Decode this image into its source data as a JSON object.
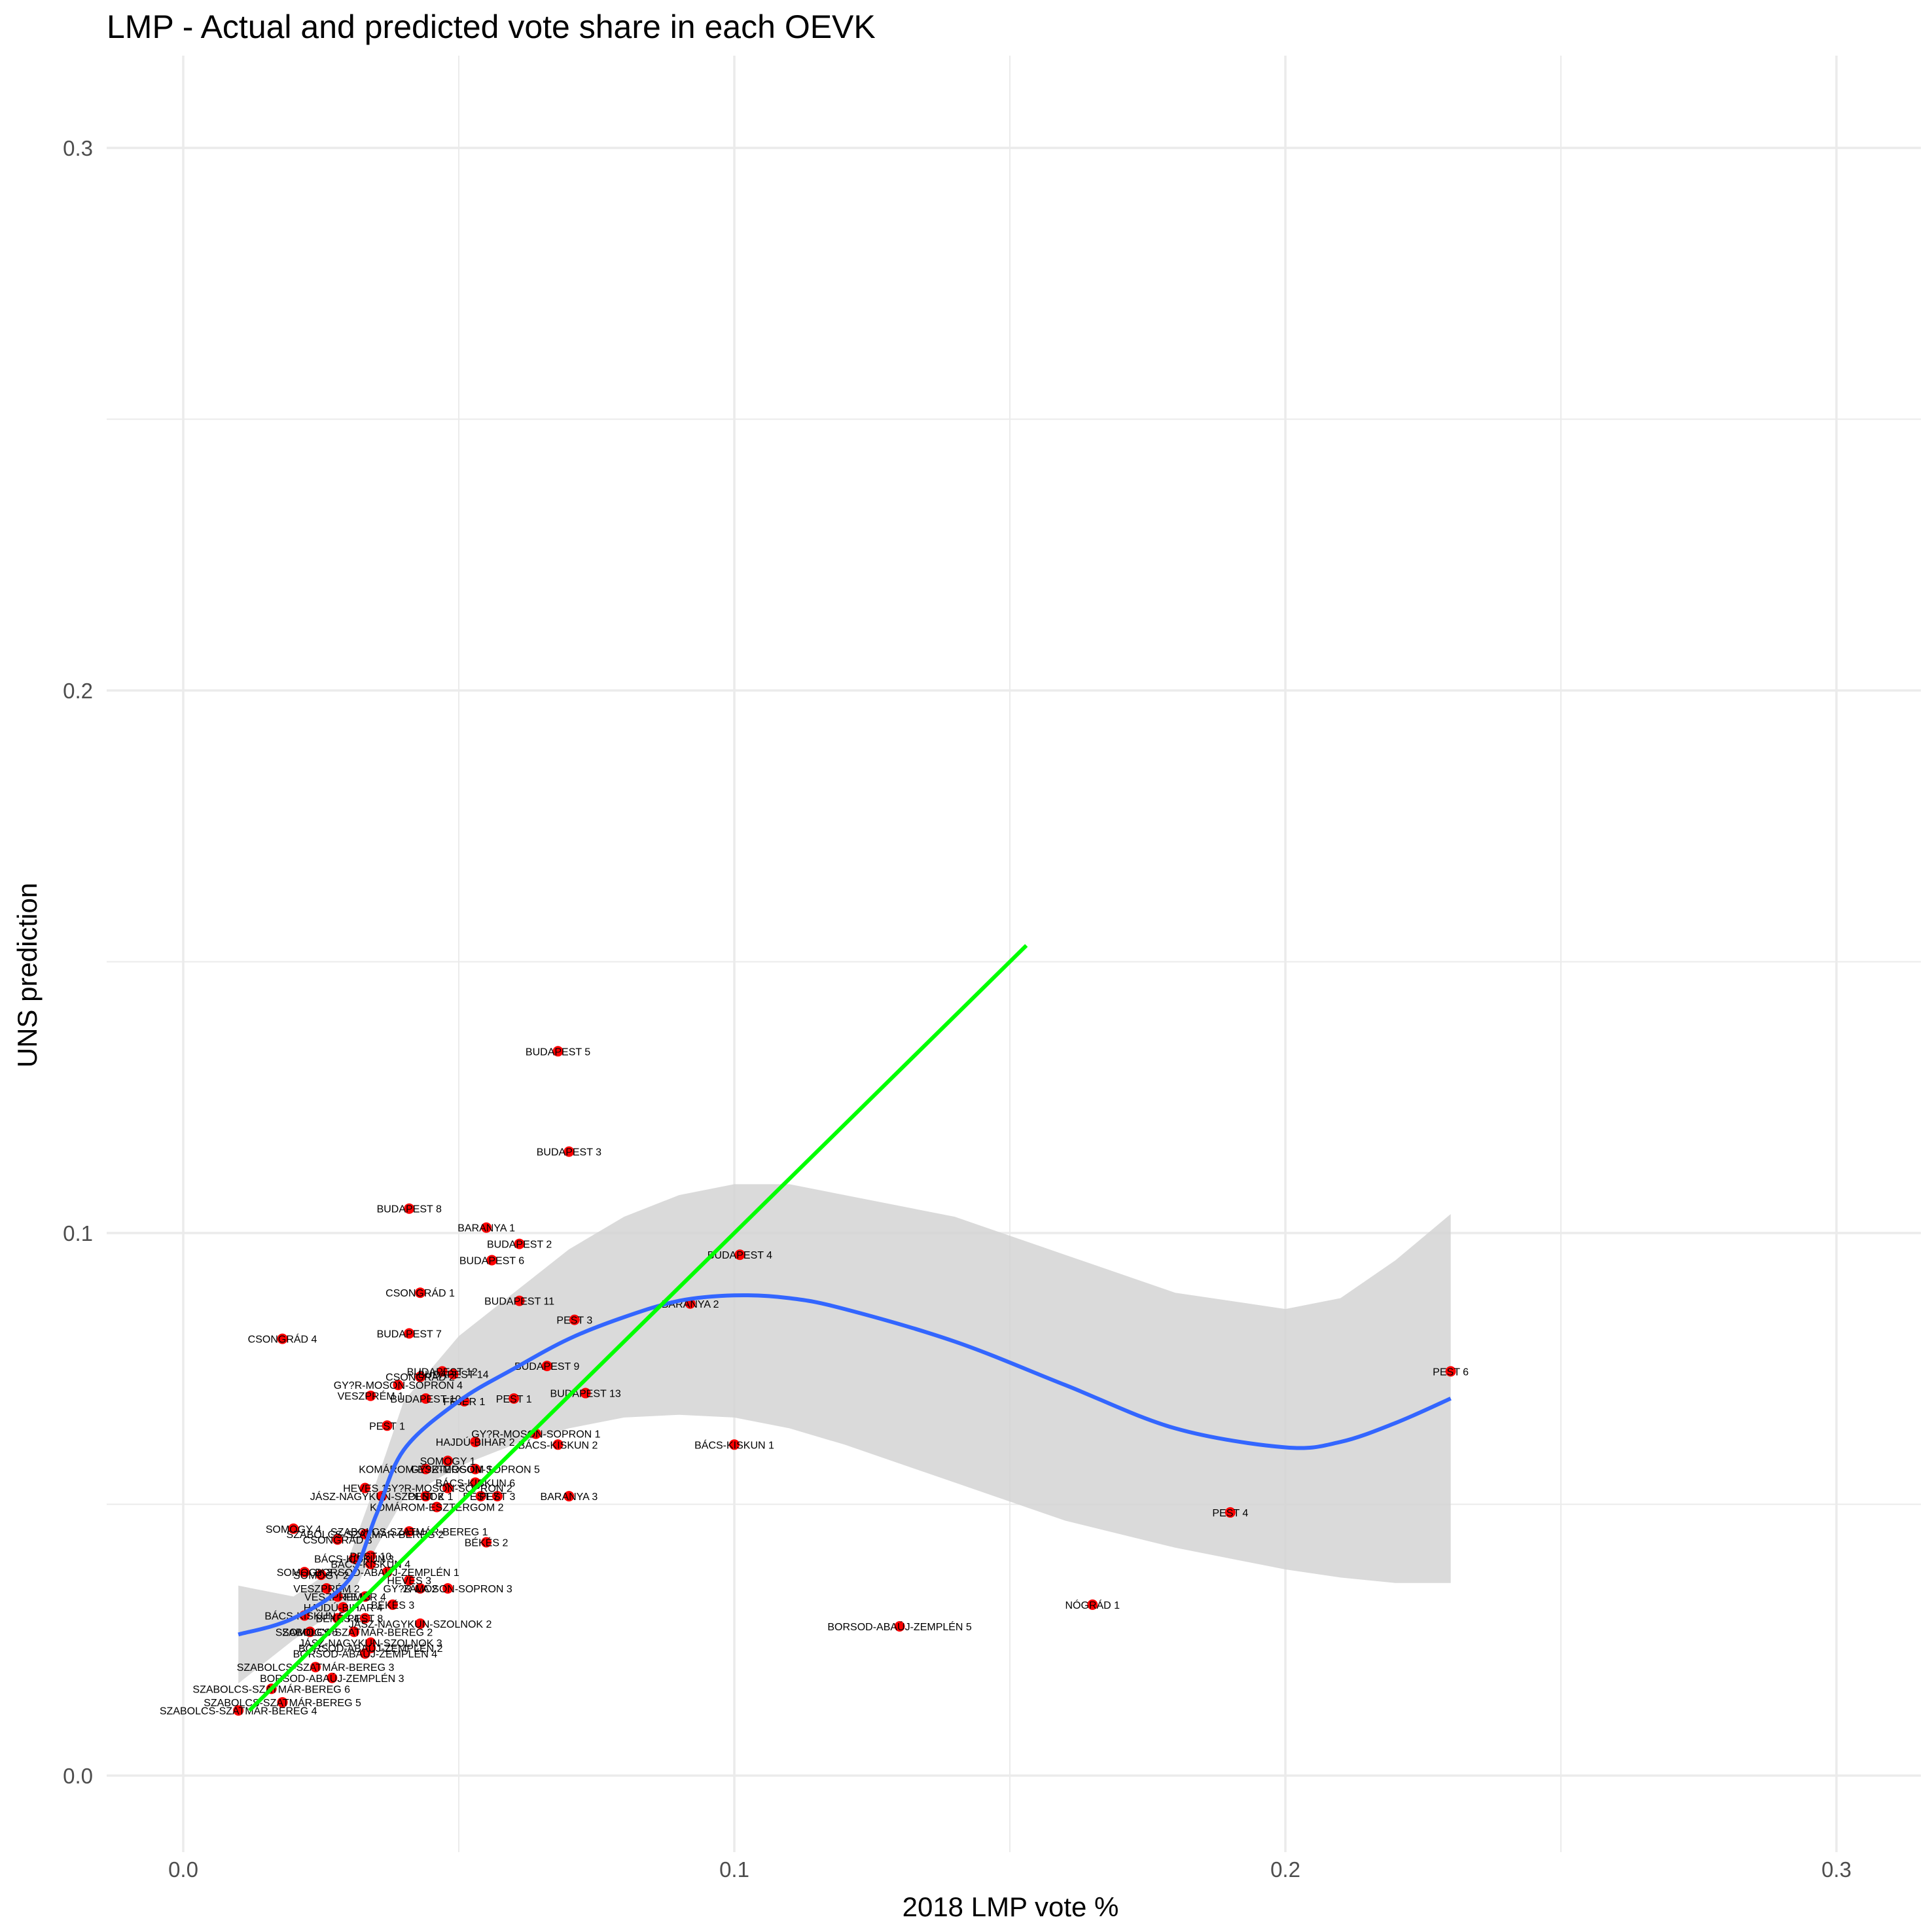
{
  "chart_data": {
    "type": "scatter",
    "title": "LMP - Actual and predicted vote share in each OEVK",
    "xlabel": "2018 LMP vote %",
    "ylabel": "UNS prediction",
    "xlim": [
      -0.014,
      0.315
    ],
    "ylim": [
      -0.014,
      0.314
    ],
    "x_ticks": [
      0.0,
      0.1,
      0.2,
      0.3
    ],
    "x_tick_labels": [
      "0.0",
      "0.1",
      "0.2",
      "0.3"
    ],
    "y_ticks": [
      0.0,
      0.1,
      0.2,
      0.3
    ],
    "y_tick_labels": [
      "0.0",
      "0.1",
      "0.2",
      "0.3"
    ],
    "grid": true,
    "colors": {
      "points": "#ff0000",
      "loess": "#3366ff",
      "ribbon": "#d3d3d3",
      "identity_line": "#00ff00",
      "grid": "#ebebeb"
    },
    "points": [
      {
        "label": "BUDAPEST 5",
        "x": 0.068,
        "y": 0.1335
      },
      {
        "label": "BUDAPEST 3",
        "x": 0.07,
        "y": 0.115
      },
      {
        "label": "BUDAPEST 8",
        "x": 0.041,
        "y": 0.1045
      },
      {
        "label": "BARANYA 1",
        "x": 0.055,
        "y": 0.101
      },
      {
        "label": "BUDAPEST 2",
        "x": 0.061,
        "y": 0.098
      },
      {
        "label": "BUDAPEST 6",
        "x": 0.056,
        "y": 0.095
      },
      {
        "label": "BUDAPEST 4",
        "x": 0.101,
        "y": 0.096
      },
      {
        "label": "CSONGRÁD 1",
        "x": 0.043,
        "y": 0.089
      },
      {
        "label": "BUDAPEST 11",
        "x": 0.061,
        "y": 0.0875
      },
      {
        "label": "BARANYA 2",
        "x": 0.092,
        "y": 0.087
      },
      {
        "label": "PEST 3",
        "x": 0.071,
        "y": 0.084
      },
      {
        "label": "CSONGRÁD 4",
        "x": 0.018,
        "y": 0.0805
      },
      {
        "label": "BUDAPEST 7",
        "x": 0.041,
        "y": 0.0815
      },
      {
        "label": "BUDAPEST 9",
        "x": 0.066,
        "y": 0.0755
      },
      {
        "label": "BUDAPEST 12",
        "x": 0.047,
        "y": 0.0745
      },
      {
        "label": "CSONGRÁD 2",
        "x": 0.043,
        "y": 0.0735
      },
      {
        "label": "BUDAPEST 14",
        "x": 0.049,
        "y": 0.074
      },
      {
        "label": "GY?R-MOSON-SOPRON 4",
        "x": 0.039,
        "y": 0.072
      },
      {
        "label": "VESZPRÉM 1",
        "x": 0.034,
        "y": 0.07
      },
      {
        "label": "BUDAPEST 10",
        "x": 0.044,
        "y": 0.0695
      },
      {
        "label": "FEJÉR 1",
        "x": 0.051,
        "y": 0.069
      },
      {
        "label": "PEST 1",
        "x": 0.06,
        "y": 0.0695
      },
      {
        "label": "BUDAPEST 13",
        "x": 0.073,
        "y": 0.0705
      },
      {
        "label": "PEST 6",
        "x": 0.23,
        "y": 0.0745
      },
      {
        "label": "PEST 1",
        "x": 0.037,
        "y": 0.0645
      },
      {
        "label": "GY?R-MOSON-SOPRON 1",
        "x": 0.064,
        "y": 0.063
      },
      {
        "label": "HAJDÚ-BIHAR 2",
        "x": 0.053,
        "y": 0.0615
      },
      {
        "label": "BÁCS-KISKUN 2",
        "x": 0.068,
        "y": 0.061
      },
      {
        "label": "BÁCS-KISKUN 1",
        "x": 0.1,
        "y": 0.061
      },
      {
        "label": "SOMOGY 1",
        "x": 0.048,
        "y": 0.058
      },
      {
        "label": "KOMÁROM-ESZTERGOM 1",
        "x": 0.044,
        "y": 0.0565
      },
      {
        "label": "GY?R-MOSON-SOPRON 5",
        "x": 0.053,
        "y": 0.0565
      },
      {
        "label": "BÁCS-KISKUN 6",
        "x": 0.053,
        "y": 0.054
      },
      {
        "label": "HEVES 1",
        "x": 0.033,
        "y": 0.053
      },
      {
        "label": "GY?R-MOSON-SOPRON 2",
        "x": 0.048,
        "y": 0.053
      },
      {
        "label": "JÁSZ-NAGYKUN-SZOLNOK 1",
        "x": 0.036,
        "y": 0.0515
      },
      {
        "label": "PEST 2",
        "x": 0.044,
        "y": 0.0515
      },
      {
        "label": "PEST 3",
        "x": 0.057,
        "y": 0.0515
      },
      {
        "label": "PEST 7",
        "x": 0.054,
        "y": 0.0515
      },
      {
        "label": "BARANYA 3",
        "x": 0.07,
        "y": 0.0515
      },
      {
        "label": "KOMÁROM-ESZTERGOM 2",
        "x": 0.046,
        "y": 0.0495
      },
      {
        "label": "PEST 4",
        "x": 0.19,
        "y": 0.0485
      },
      {
        "label": "SOMOGY 4",
        "x": 0.02,
        "y": 0.0455
      },
      {
        "label": "SZABOLCS-SZATMÁR-BEREG 1",
        "x": 0.041,
        "y": 0.045
      },
      {
        "label": "SZABOLCS-SZATMÁR-BEREG 2",
        "x": 0.033,
        "y": 0.0445
      },
      {
        "label": "CSONGRÁD 3",
        "x": 0.028,
        "y": 0.0435
      },
      {
        "label": "BÉKÉS 2",
        "x": 0.055,
        "y": 0.043
      },
      {
        "label": "PEST 10",
        "x": 0.034,
        "y": 0.0405
      },
      {
        "label": "BÁCS-KISKUN 3",
        "x": 0.031,
        "y": 0.04
      },
      {
        "label": "BÁCS-KISKUN 4",
        "x": 0.034,
        "y": 0.039
      },
      {
        "label": "SOMOGY 3",
        "x": 0.022,
        "y": 0.0375
      },
      {
        "label": "SOMOGY 2",
        "x": 0.025,
        "y": 0.037
      },
      {
        "label": "BORSOD-ABAÚJ-ZEMPLÉN 1",
        "x": 0.037,
        "y": 0.0375
      },
      {
        "label": "HEVES 3",
        "x": 0.041,
        "y": 0.036
      },
      {
        "label": "GY?R-MOSON-SOPRON 3",
        "x": 0.048,
        "y": 0.0345
      },
      {
        "label": "ZALA 2",
        "x": 0.043,
        "y": 0.0345
      },
      {
        "label": "VESZPRÉM 2",
        "x": 0.026,
        "y": 0.0345
      },
      {
        "label": "VESZPRÉM 3",
        "x": 0.028,
        "y": 0.033
      },
      {
        "label": "FEJÉR 4",
        "x": 0.033,
        "y": 0.033
      },
      {
        "label": "BÉKÉS 3",
        "x": 0.038,
        "y": 0.0315
      },
      {
        "label": "HAJDÚ-BIHAR 4",
        "x": 0.029,
        "y": 0.031
      },
      {
        "label": "NÓGRÁD 1",
        "x": 0.165,
        "y": 0.0315
      },
      {
        "label": "BÁCS-KISKUN 5",
        "x": 0.022,
        "y": 0.0295
      },
      {
        "label": "BÉKÉS 4",
        "x": 0.028,
        "y": 0.029
      },
      {
        "label": "PEST 8",
        "x": 0.033,
        "y": 0.029
      },
      {
        "label": "JÁSZ-NAGYKUN-SZOLNOK 2",
        "x": 0.043,
        "y": 0.028
      },
      {
        "label": "BORSOD-ABAÚJ-ZEMPLÉN 5",
        "x": 0.13,
        "y": 0.0275
      },
      {
        "label": "SOMOGY 5",
        "x": 0.023,
        "y": 0.0265
      },
      {
        "label": "SZABOLCS-SZATMÁR-BEREG 2",
        "x": 0.031,
        "y": 0.0265
      },
      {
        "label": "JÁSZ-NAGYKUN-SZOLNOK 3",
        "x": 0.034,
        "y": 0.0245
      },
      {
        "label": "BORSOD-ABAÚJ-ZEMPLÉN 2",
        "x": 0.034,
        "y": 0.0235
      },
      {
        "label": "BORSOD-ABAÚJ-ZEMPLÉN 4",
        "x": 0.033,
        "y": 0.0225
      },
      {
        "label": "SZABOLCS-SZATMÁR-BEREG 3",
        "x": 0.024,
        "y": 0.02
      },
      {
        "label": "BORSOD-ABAÚJ-ZEMPLÉN 3",
        "x": 0.027,
        "y": 0.018
      },
      {
        "label": "SZABOLCS-SZATMÁR-BEREG 6",
        "x": 0.016,
        "y": 0.016
      },
      {
        "label": "SZABOLCS-SZATMÁR-BEREG 5",
        "x": 0.018,
        "y": 0.0135
      },
      {
        "label": "SZABOLCS-SZATMÁR-BEREG 4",
        "x": 0.01,
        "y": 0.012
      }
    ],
    "loess_curve": {
      "x": [
        0.01,
        0.02,
        0.03,
        0.035,
        0.04,
        0.05,
        0.06,
        0.07,
        0.08,
        0.09,
        0.1,
        0.11,
        0.12,
        0.14,
        0.16,
        0.18,
        0.2,
        0.21,
        0.22,
        0.23
      ],
      "y": [
        0.026,
        0.029,
        0.036,
        0.048,
        0.06,
        0.069,
        0.075,
        0.0805,
        0.0845,
        0.0875,
        0.0885,
        0.088,
        0.086,
        0.08,
        0.072,
        0.064,
        0.0605,
        0.0615,
        0.065,
        0.0695
      ],
      "lower": [
        0.017,
        0.025,
        0.032,
        0.042,
        0.051,
        0.057,
        0.061,
        0.064,
        0.066,
        0.0665,
        0.066,
        0.064,
        0.061,
        0.054,
        0.047,
        0.042,
        0.038,
        0.0365,
        0.0355,
        0.0355
      ],
      "upper": [
        0.035,
        0.033,
        0.04,
        0.054,
        0.069,
        0.081,
        0.089,
        0.097,
        0.103,
        0.107,
        0.109,
        0.109,
        0.107,
        0.103,
        0.096,
        0.089,
        0.086,
        0.088,
        0.095,
        0.1035
      ]
    },
    "identity_line": {
      "x": [
        0.012,
        0.153
      ],
      "y": [
        0.012,
        0.153
      ]
    }
  }
}
